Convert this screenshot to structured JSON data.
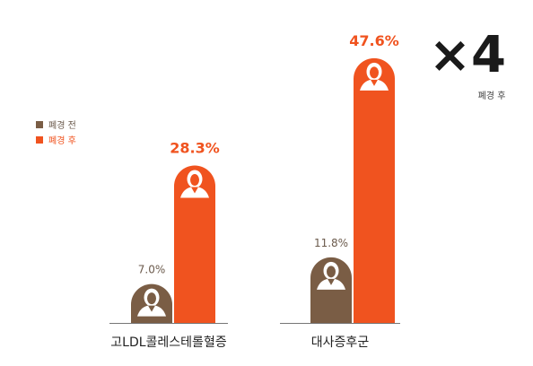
{
  "chart_data": {
    "type": "bar",
    "categories": [
      "고LDL콜레스테롤혈증",
      "대사증후군"
    ],
    "series": [
      {
        "name": "폐경 전",
        "values": [
          7.0,
          11.8
        ],
        "labels": [
          "7.0%",
          "11.8%"
        ],
        "color": "#7a5d45"
      },
      {
        "name": "폐경 후",
        "values": [
          28.3,
          47.6
        ],
        "labels": [
          "28.3%",
          "47.6%"
        ],
        "color": "#f0531f"
      }
    ],
    "ylim": [
      0,
      50
    ],
    "legend_position": "left",
    "grid": false,
    "annotation": {
      "text": "×4",
      "subtext": "폐경 후"
    },
    "icon": "woman-figure-icon"
  }
}
